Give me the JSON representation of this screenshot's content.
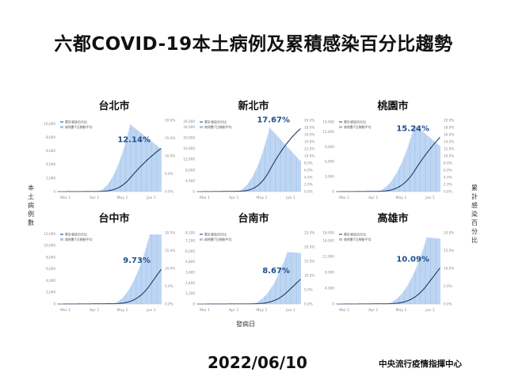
{
  "title": "六都COVID-19本土病例及累積感染百分比趨勢",
  "date": "2022/06/10",
  "agency": "中央流行疫情指揮中心",
  "ylabel_left": "本土病例數",
  "ylabel_right": "累計感染百分比",
  "xlabel": "發病日",
  "legend": {
    "line": "累計感染百分比",
    "bar": "病例數7日移動平均"
  },
  "colors": {
    "bar": "#a8c8ee",
    "line": "#1f3a60",
    "label": "#1f4e8c",
    "axis_text": "#888888"
  },
  "chart_data": [
    {
      "type": "bar",
      "city": "台北市",
      "final_pct_label": "12.14%",
      "y_ticks": [
        "0",
        "2,000",
        "4,000",
        "6,000",
        "8,000",
        "10,000"
      ],
      "ylim": [
        0,
        10500
      ],
      "peak": 9900,
      "y2_ticks": [
        "0.0%",
        "5.0%",
        "10.0%",
        "15.0%",
        "20.0%"
      ],
      "y2lim": [
        0,
        20
      ],
      "final_pct": 12.14,
      "x_ticks": [
        "Mar 1",
        "Apr 1",
        "May 1",
        "Jun 1"
      ],
      "start_day": 40,
      "peak_day": 78,
      "end_value": 6200
    },
    {
      "type": "bar",
      "city": "新北市",
      "final_pct_label": "17.67%",
      "y_ticks": [
        "0",
        "2,000",
        "4,000",
        "6,000",
        "8,000",
        "10,000",
        "12,000",
        "14,000",
        "16,000",
        "18,000",
        "20,000",
        "22,000",
        "24,000",
        "26,000"
      ],
      "ylim": [
        0,
        26500
      ],
      "peak": 23800,
      "y2_ticks": [
        "0.0%",
        "2.0%",
        "4.0%",
        "6.0%",
        "8.0%",
        "10.0%",
        "12.0%",
        "14.0%",
        "16.0%",
        "18.0%",
        "20.0%"
      ],
      "y2lim": [
        0,
        20
      ],
      "final_pct": 17.67,
      "x_ticks": [
        "Mar 1",
        "Apr 1",
        "May 1",
        "Jun 1"
      ],
      "start_day": 40,
      "peak_day": 78,
      "end_value": 11000
    },
    {
      "type": "bar",
      "city": "桃園市",
      "final_pct_label": "15.24%",
      "y_ticks": [
        "0",
        "1,000",
        "2,000",
        "3,000",
        "4,000",
        "5,000",
        "6,000",
        "7,000",
        "8,000",
        "9,000",
        "10,000",
        "11,000",
        "12,000",
        "13,000",
        "14,000"
      ],
      "ylim": [
        0,
        14300
      ],
      "peak": 13400,
      "y2_ticks": [
        "0.0%",
        "2.0%",
        "4.0%",
        "6.0%",
        "8.0%",
        "10.0%",
        "12.0%",
        "14.0%",
        "16.0%",
        "18.0%",
        "20.0%"
      ],
      "y2lim": [
        0,
        20
      ],
      "final_pct": 15.24,
      "x_ticks": [
        "Mar 1",
        "Apr 1",
        "May 1",
        "Jun 1"
      ],
      "start_day": 40,
      "peak_day": 84,
      "end_value": 9000
    },
    {
      "type": "bar",
      "city": "台中市",
      "final_pct_label": "9.73%",
      "y_ticks": [
        "0",
        "2,000",
        "4,000",
        "6,000",
        "8,000",
        "10,000",
        "12,000"
      ],
      "ylim": [
        0,
        12200
      ],
      "peak": 11900,
      "y2_ticks": [
        "0.0%",
        "5.0%",
        "10.0%",
        "15.0%",
        "20.0%"
      ],
      "y2lim": [
        0,
        20
      ],
      "final_pct": 9.73,
      "x_ticks": [
        "Mar 1",
        "Apr 1",
        "May 1",
        "Jun 1"
      ],
      "start_day": 55,
      "peak_day": 99,
      "end_value": 11900
    },
    {
      "type": "bar",
      "city": "台南市",
      "final_pct_label": "8.67%",
      "y_ticks": [
        "0",
        "300",
        "600",
        "900",
        "1,200",
        "1,500",
        "1,800",
        "2,100",
        "2,400",
        "2,700",
        "3,000",
        "3,300",
        "3,600",
        "3,900",
        "4,200",
        "4,500",
        "4,800",
        "5,100",
        "5,400",
        "5,700",
        "6,000",
        "6,300",
        "6,600",
        "6,900",
        "7,200",
        "7,500",
        "7,800",
        "8,100"
      ],
      "ylim": [
        0,
        8100
      ],
      "peak": 5900,
      "y2_ticks": [
        "0.0%",
        "5.0%",
        "10.0%",
        "15.0%",
        "20.0%",
        "25.0%"
      ],
      "y2lim": [
        0,
        25
      ],
      "final_pct": 8.67,
      "x_ticks": [
        "Mar 1",
        "Apr 1",
        "May 1",
        "Jun 1"
      ],
      "start_day": 55,
      "peak_day": 97,
      "end_value": 5800
    },
    {
      "type": "bar",
      "city": "高雄市",
      "final_pct_label": "10.09%",
      "y_ticks": [
        "0",
        "2,000",
        "4,000",
        "6,000",
        "8,000",
        "10,000",
        "12,000",
        "14,000",
        "16,000",
        "18,000"
      ],
      "ylim": [
        0,
        18000
      ],
      "peak": 16800,
      "y2_ticks": [
        "0.0%",
        "5.0%",
        "10.0%",
        "15.0%",
        "20.0%"
      ],
      "y2lim": [
        0,
        20
      ],
      "final_pct": 10.09,
      "x_ticks": [
        "Mar 1",
        "Apr 1",
        "May 1",
        "Jun 1"
      ],
      "start_day": 50,
      "peak_day": 97,
      "end_value": 16500
    }
  ]
}
